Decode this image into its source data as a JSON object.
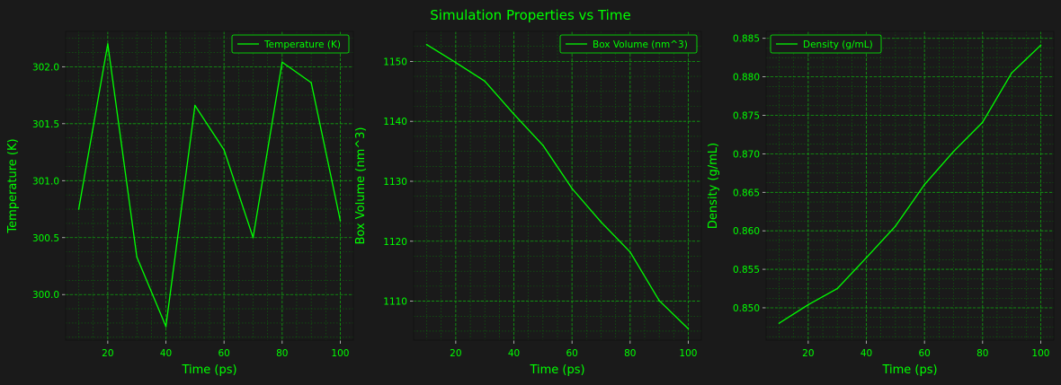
{
  "figure": {
    "title": "Simulation Properties vs Time",
    "background": "#1a1a1a",
    "accent": "#00ff00"
  },
  "chart_data": [
    {
      "type": "line",
      "xlabel": "Time (ps)",
      "ylabel": "Temperature (K)",
      "xlim": [
        5.5,
        104.5
      ],
      "ylim": [
        299.6,
        302.31
      ],
      "xticks": [
        20,
        40,
        60,
        80,
        100
      ],
      "yticks": [
        300.0,
        300.5,
        301.0,
        301.5,
        302.0
      ],
      "ytick_labels": [
        "300.0",
        "300.5",
        "301.0",
        "301.5",
        "302.0"
      ],
      "grid": true,
      "legend_position": "top-right",
      "series": [
        {
          "name": "Temperature (K)",
          "color": "#00ff00",
          "x": [
            10,
            20,
            30,
            40,
            50,
            60,
            70,
            80,
            90,
            100
          ],
          "y": [
            300.75,
            302.2,
            300.33,
            299.72,
            301.66,
            301.27,
            300.5,
            302.04,
            301.86,
            300.65
          ]
        }
      ]
    },
    {
      "type": "line",
      "xlabel": "Time (ps)",
      "ylabel": "Box Volume (nm^3)",
      "xlim": [
        5.5,
        104.5
      ],
      "ylim": [
        1103.5,
        1155.0
      ],
      "xticks": [
        20,
        40,
        60,
        80,
        100
      ],
      "yticks": [
        1110,
        1120,
        1130,
        1140,
        1150
      ],
      "ytick_labels": [
        "1110",
        "1120",
        "1130",
        "1140",
        "1150"
      ],
      "grid": true,
      "legend_position": "top-right",
      "series": [
        {
          "name": "Box Volume (nm^3)",
          "color": "#00ff00",
          "x": [
            10,
            20,
            30,
            40,
            50,
            60,
            70,
            80,
            90,
            100
          ],
          "y": [
            1152.8,
            1149.8,
            1146.7,
            1141.2,
            1136.0,
            1128.8,
            1123.2,
            1118.2,
            1110.1,
            1105.4
          ]
        }
      ]
    },
    {
      "type": "line",
      "xlabel": "Time (ps)",
      "ylabel": "Density (g/mL)",
      "xlim": [
        5.5,
        104.5
      ],
      "ylim": [
        0.8458,
        0.8859
      ],
      "xticks": [
        20,
        40,
        60,
        80,
        100
      ],
      "yticks": [
        0.85,
        0.855,
        0.86,
        0.865,
        0.87,
        0.875,
        0.88,
        0.885
      ],
      "ytick_labels": [
        "0.850",
        "0.855",
        "0.860",
        "0.865",
        "0.870",
        "0.875",
        "0.880",
        "0.885"
      ],
      "grid": true,
      "legend_position": "top-left",
      "series": [
        {
          "name": "Density (g/mL)",
          "color": "#00ff00",
          "x": [
            10,
            20,
            30,
            40,
            50,
            60,
            70,
            80,
            90,
            100
          ],
          "y": [
            0.848,
            0.8504,
            0.8525,
            0.8565,
            0.8606,
            0.866,
            0.8703,
            0.8741,
            0.8805,
            0.8841
          ]
        }
      ]
    }
  ]
}
